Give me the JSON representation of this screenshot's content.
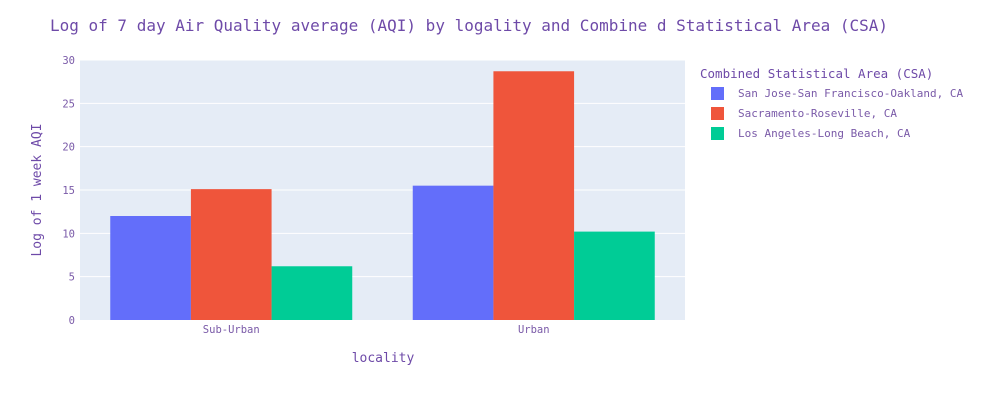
{
  "chart_data": {
    "type": "bar",
    "title": "Log of 7 day Air Quality average (AQI) by logality and Combine d Statistical Area (CSA)",
    "xlabel": "locality",
    "ylabel": "Log of 1 week AQI",
    "categories": [
      "Sub-Urban",
      "Urban"
    ],
    "ylim": [
      0,
      30
    ],
    "yticks": [
      0,
      5,
      10,
      15,
      20,
      25,
      30
    ],
    "grid": true,
    "legend": {
      "title": "Combined Statistical Area (CSA)",
      "placement": "right"
    },
    "series": [
      {
        "name": "San Jose-San Francisco-Oakland, CA",
        "color": "#636efa",
        "values": [
          12.0,
          15.5
        ]
      },
      {
        "name": "Sacramento-Roseville, CA",
        "color": "#ef553b",
        "values": [
          15.1,
          28.7
        ]
      },
      {
        "name": "Los Angeles-Long Beach, CA",
        "color": "#00cc96",
        "values": [
          6.2,
          10.2
        ]
      }
    ]
  }
}
